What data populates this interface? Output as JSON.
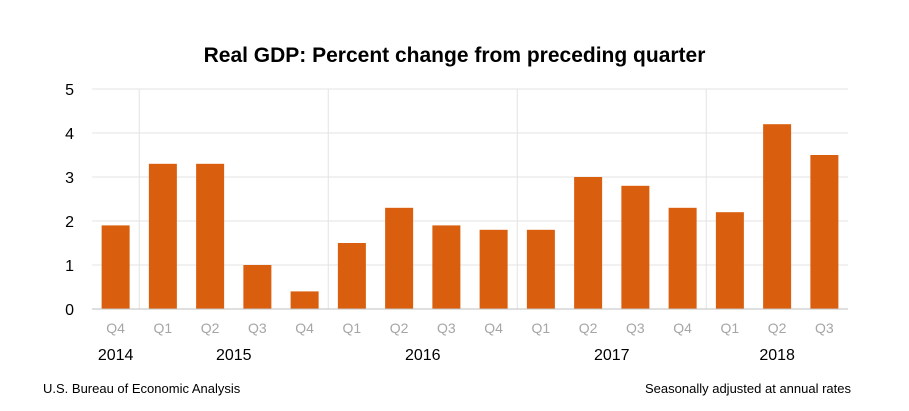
{
  "chart_data": {
    "type": "bar",
    "title": "Real GDP:  Percent change from preceding quarter",
    "categories": [
      "Q4",
      "Q1",
      "Q2",
      "Q3",
      "Q4",
      "Q1",
      "Q2",
      "Q3",
      "Q4",
      "Q1",
      "Q2",
      "Q3",
      "Q4",
      "Q1",
      "Q2",
      "Q3"
    ],
    "years": [
      {
        "label": "2014",
        "start": 0,
        "end": 0
      },
      {
        "label": "2015",
        "start": 1,
        "end": 4
      },
      {
        "label": "2016",
        "start": 5,
        "end": 8
      },
      {
        "label": "2017",
        "start": 9,
        "end": 12
      },
      {
        "label": "2018",
        "start": 13,
        "end": 15
      }
    ],
    "values": [
      1.9,
      3.3,
      3.3,
      1.0,
      0.4,
      1.5,
      2.3,
      1.9,
      1.8,
      1.8,
      3.0,
      2.8,
      2.3,
      2.2,
      4.2,
      3.5
    ],
    "yticks": [
      0,
      1,
      2,
      3,
      4,
      5
    ],
    "ylim": [
      0,
      5
    ],
    "xlabel": "",
    "ylabel": "",
    "grid": true,
    "bar_color": "#d95f0e"
  },
  "footer": {
    "source": "U.S. Bureau of Economic Analysis",
    "note": "Seasonally adjusted at annual rates"
  }
}
